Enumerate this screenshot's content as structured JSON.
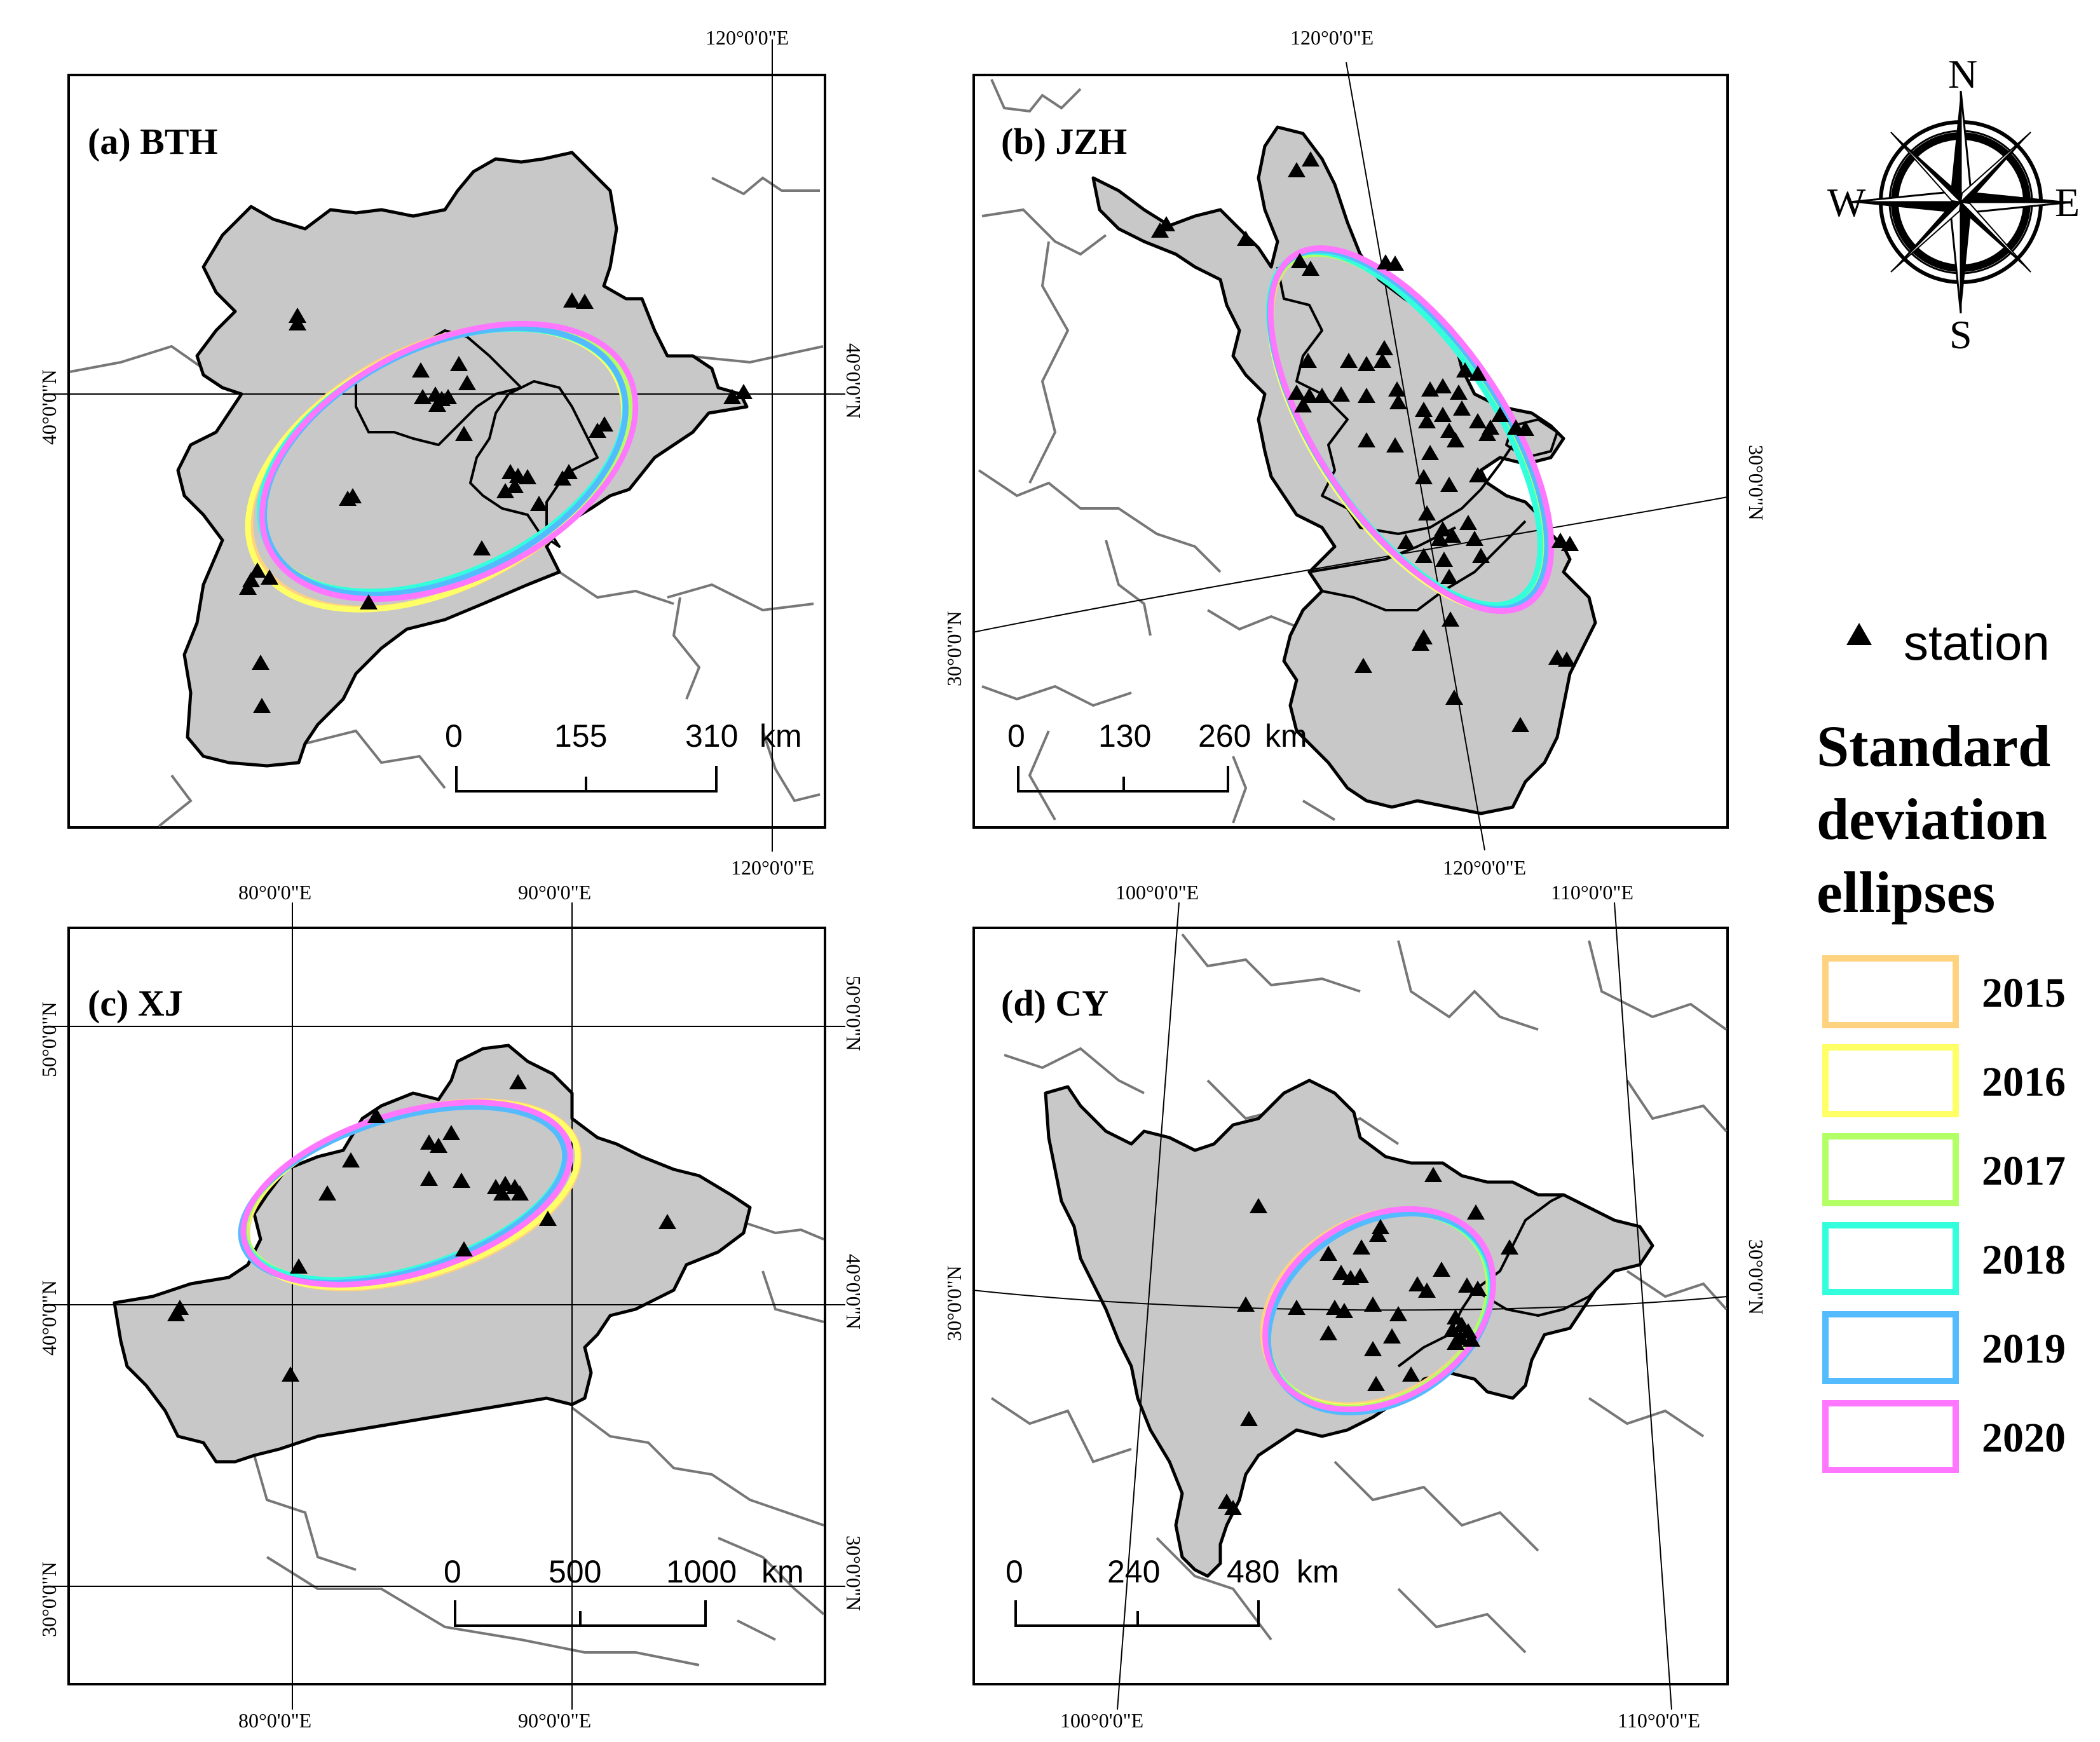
{
  "panels": [
    {
      "id": "bth",
      "title": "(a) BTH",
      "scale": {
        "labels": [
          "0",
          "155",
          "310"
        ],
        "unit": "km"
      },
      "coords": {
        "top": "120°0'0\"E",
        "bottom": "120°0'0\"E",
        "left": "40°0'0\"N",
        "right": "40°0'0\"N"
      }
    },
    {
      "id": "jzh",
      "title": "(b) JZH",
      "scale": {
        "labels": [
          "0",
          "130",
          "260"
        ],
        "unit": "km"
      },
      "coords": {
        "top": "120°0'0\"E",
        "bottom": "120°0'0\"E",
        "left": "30°0'0\"N",
        "right": "30°0'0\"N"
      }
    },
    {
      "id": "xj",
      "title": "(c) XJ",
      "scale": {
        "labels": [
          "0",
          "500",
          "1000"
        ],
        "unit": "km"
      },
      "coords": {
        "top1": "80°0'0\"E",
        "top2": "90°0'0\"E",
        "bottom1": "80°0'0\"E",
        "bottom2": "90°0'0\"E",
        "left1": "50°0'0\"N",
        "left2": "40°0'0\"N",
        "left3": "30°0'0\"N",
        "right1": "50°0'0\"N",
        "right2": "40°0'0\"N",
        "right3": "30°0'0\"N"
      }
    },
    {
      "id": "cy",
      "title": "(d) CY",
      "scale": {
        "labels": [
          "0",
          "240",
          "480"
        ],
        "unit": "km"
      },
      "coords": {
        "top1": "100°0'0\"E",
        "top2": "110°0'0\"E",
        "bottom1": "100°0'0\"E",
        "bottom2": "110°0'0\"E",
        "left": "30°0'0\"N",
        "right": "30°0'0\"N"
      }
    }
  ],
  "compass": {
    "n": "N",
    "s": "S",
    "e": "E",
    "w": "W"
  },
  "legend": {
    "station_label": "station",
    "ellipses_title_lines": [
      "Standard",
      "deviation",
      "ellipses"
    ],
    "years": [
      {
        "year": "2015",
        "color": "#ffd27f"
      },
      {
        "year": "2016",
        "color": "#ffff66"
      },
      {
        "year": "2017",
        "color": "#b3ff66"
      },
      {
        "year": "2018",
        "color": "#33ffdd"
      },
      {
        "year": "2019",
        "color": "#55bbff"
      },
      {
        "year": "2020",
        "color": "#ff77ff"
      }
    ]
  }
}
